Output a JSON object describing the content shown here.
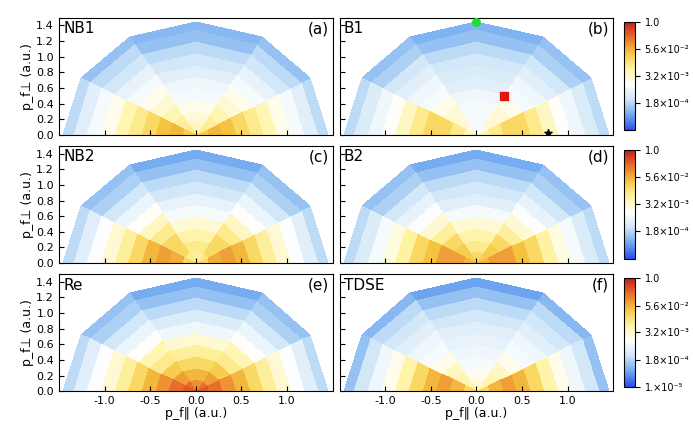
{
  "chart_data": [
    {
      "type": "polar_heatmap",
      "label": "NB1",
      "letter": "(a)",
      "tick_labels": "y",
      "ylabel": "p_f⊥ (a.u.)",
      "xlim": [
        -1.5,
        1.5
      ],
      "ylim": [
        0.0,
        1.5
      ],
      "xticks": [
        -1.0,
        -0.5,
        0.0,
        0.5,
        1.0
      ],
      "yticks": [
        0.0,
        0.2,
        0.4,
        0.6,
        0.8,
        1.0,
        1.2,
        1.4
      ],
      "r_edges": [
        0.0,
        0.15,
        0.3,
        0.45,
        0.6,
        0.75,
        0.9,
        1.05,
        1.2,
        1.35,
        1.45
      ],
      "theta_edges": [
        0,
        30,
        60,
        90,
        120,
        150,
        180
      ],
      "cells": [
        [
          0.03,
          0.01,
          0.005,
          0.005,
          0.01,
          0.03
        ],
        [
          0.05,
          0.008,
          0.003,
          0.003,
          0.008,
          0.05
        ],
        [
          0.04,
          0.005,
          0.002,
          0.002,
          0.005,
          0.04
        ],
        [
          0.02,
          0.003,
          0.001,
          0.001,
          0.003,
          0.02
        ],
        [
          0.01,
          0.002,
          0.0008,
          0.0008,
          0.002,
          0.01
        ],
        [
          0.005,
          0.001,
          0.0005,
          0.0005,
          0.001,
          0.005
        ],
        [
          0.002,
          0.0006,
          0.0003,
          0.0003,
          0.0006,
          0.002
        ],
        [
          0.001,
          0.0003,
          0.0002,
          0.0002,
          0.0003,
          0.001
        ],
        [
          0.0005,
          0.0002,
          0.0001,
          0.0001,
          0.0002,
          0.0005
        ],
        [
          0.0002,
          0.0001,
          8e-05,
          8e-05,
          0.0001,
          0.0002
        ]
      ]
    },
    {
      "type": "polar_heatmap",
      "label": "B1",
      "letter": "(b)",
      "tick_labels": false,
      "xlim": [
        -1.5,
        1.5
      ],
      "ylim": [
        0.0,
        1.5
      ],
      "xticks": [
        -1.0,
        -0.5,
        0.0,
        0.5,
        1.0
      ],
      "yticks": [
        0.0,
        0.2,
        0.4,
        0.6,
        0.8,
        1.0,
        1.2,
        1.4
      ],
      "r_edges": [
        0.0,
        0.15,
        0.3,
        0.45,
        0.6,
        0.75,
        0.9,
        1.05,
        1.2,
        1.35,
        1.45
      ],
      "theta_edges": [
        0,
        30,
        60,
        90,
        120,
        150,
        180
      ],
      "cells": [
        [
          0.005,
          0.002,
          0.001,
          0.001,
          0.002,
          0.005
        ],
        [
          0.01,
          0.003,
          0.001,
          0.001,
          0.003,
          0.01
        ],
        [
          0.02,
          0.003,
          0.001,
          0.001,
          0.003,
          0.02
        ],
        [
          0.02,
          0.002,
          0.0008,
          0.0008,
          0.002,
          0.02
        ],
        [
          0.01,
          0.001,
          0.0005,
          0.0005,
          0.001,
          0.01
        ],
        [
          0.004,
          0.0008,
          0.0004,
          0.0004,
          0.0008,
          0.004
        ],
        [
          0.0015,
          0.0005,
          0.0003,
          0.0003,
          0.0005,
          0.0015
        ],
        [
          0.0008,
          0.0003,
          0.0002,
          0.0002,
          0.0003,
          0.0008
        ],
        [
          0.0004,
          0.00015,
          0.0001,
          0.0001,
          0.00015,
          0.0004
        ],
        [
          0.0002,
          0.0001,
          7e-05,
          7e-05,
          0.0001,
          0.0002
        ]
      ],
      "points": [
        {
          "x": 0.0,
          "y": 1.45,
          "color": "#22dd33",
          "marker": "o"
        },
        {
          "x": 0.3,
          "y": 0.5,
          "color": "#ee1111",
          "marker": "s"
        },
        {
          "x": 0.78,
          "y": 0.02,
          "color": "#000000",
          "marker": "*"
        }
      ],
      "colorbar": {
        "range": [
          1e-05,
          1.0
        ],
        "ticks": [
          {
            "value": 0.00018,
            "label": "1.8×10⁻⁴"
          },
          {
            "value": 0.0032,
            "label": "3.2×10⁻³"
          },
          {
            "value": 0.056,
            "label": "5.6×10⁻²"
          },
          1.0
        ]
      }
    },
    {
      "type": "polar_heatmap",
      "label": "NB2",
      "letter": "(c)",
      "tick_labels": "y",
      "ylabel": "p_f⊥ (a.u.)",
      "xlim": [
        -1.5,
        1.5
      ],
      "ylim": [
        0.0,
        1.5
      ],
      "xticks": [
        -1.0,
        -0.5,
        0.0,
        0.5,
        1.0
      ],
      "yticks": [
        0.0,
        0.2,
        0.4,
        0.6,
        0.8,
        1.0,
        1.2,
        1.4
      ],
      "r_edges": [
        0.0,
        0.15,
        0.3,
        0.45,
        0.6,
        0.75,
        0.9,
        1.05,
        1.2,
        1.35,
        1.45
      ],
      "theta_edges": [
        0,
        30,
        60,
        90,
        120,
        150,
        180
      ],
      "cells": [
        [
          0.02,
          0.01,
          0.008,
          0.008,
          0.01,
          0.02
        ],
        [
          0.06,
          0.02,
          0.01,
          0.01,
          0.02,
          0.06
        ],
        [
          0.08,
          0.02,
          0.006,
          0.006,
          0.02,
          0.08
        ],
        [
          0.05,
          0.01,
          0.003,
          0.003,
          0.01,
          0.05
        ],
        [
          0.02,
          0.004,
          0.001,
          0.001,
          0.004,
          0.02
        ],
        [
          0.008,
          0.0015,
          0.0006,
          0.0006,
          0.0015,
          0.008
        ],
        [
          0.003,
          0.0007,
          0.0003,
          0.0003,
          0.0007,
          0.003
        ],
        [
          0.0012,
          0.0003,
          0.0002,
          0.0002,
          0.0003,
          0.0012
        ],
        [
          0.0005,
          0.00015,
          0.0001,
          0.0001,
          0.00015,
          0.0005
        ],
        [
          0.0002,
          0.0001,
          6e-05,
          6e-05,
          0.0001,
          0.0002
        ]
      ]
    },
    {
      "type": "polar_heatmap",
      "label": "B2",
      "letter": "(d)",
      "tick_labels": false,
      "xlim": [
        -1.5,
        1.5
      ],
      "ylim": [
        0.0,
        1.5
      ],
      "xticks": [
        -1.0,
        -0.5,
        0.0,
        0.5,
        1.0
      ],
      "yticks": [
        0.0,
        0.2,
        0.4,
        0.6,
        0.8,
        1.0,
        1.2,
        1.4
      ],
      "r_edges": [
        0.0,
        0.15,
        0.3,
        0.45,
        0.6,
        0.75,
        0.9,
        1.05,
        1.2,
        1.35,
        1.45
      ],
      "theta_edges": [
        0,
        30,
        60,
        90,
        120,
        150,
        180
      ],
      "cells": [
        [
          0.05,
          0.03,
          0.02,
          0.02,
          0.03,
          0.05
        ],
        [
          0.08,
          0.03,
          0.01,
          0.01,
          0.03,
          0.08
        ],
        [
          0.08,
          0.02,
          0.006,
          0.006,
          0.02,
          0.08
        ],
        [
          0.04,
          0.008,
          0.003,
          0.003,
          0.008,
          0.04
        ],
        [
          0.02,
          0.003,
          0.001,
          0.001,
          0.003,
          0.02
        ],
        [
          0.007,
          0.0012,
          0.0005,
          0.0005,
          0.0012,
          0.007
        ],
        [
          0.0025,
          0.0006,
          0.0003,
          0.0003,
          0.0006,
          0.0025
        ],
        [
          0.001,
          0.0003,
          0.0002,
          0.0002,
          0.0003,
          0.001
        ],
        [
          0.0004,
          0.00015,
          0.0001,
          0.0001,
          0.00015,
          0.0004
        ],
        [
          0.0002,
          0.0001,
          6e-05,
          6e-05,
          0.0001,
          0.0002
        ]
      ],
      "colorbar": {
        "range": [
          1e-05,
          1.0
        ],
        "ticks": [
          {
            "value": 0.00018,
            "label": "1.8×10⁻⁴"
          },
          {
            "value": 0.0032,
            "label": "3.2×10⁻³"
          },
          {
            "value": 0.056,
            "label": "5.6×10⁻²"
          },
          1.0
        ]
      }
    },
    {
      "type": "polar_heatmap",
      "label": "Re",
      "letter": "(e)",
      "tick_labels": true,
      "xlabel": "p_f∥ (a.u.)",
      "ylabel": "p_f⊥ (a.u.)",
      "xlim": [
        -1.5,
        1.5
      ],
      "ylim": [
        0.0,
        1.5
      ],
      "xticks": [
        -1.0,
        -0.5,
        0.0,
        0.5,
        1.0
      ],
      "yticks": [
        0.0,
        0.2,
        0.4,
        0.6,
        0.8,
        1.0,
        1.2,
        1.4
      ],
      "r_edges": [
        0.0,
        0.15,
        0.3,
        0.45,
        0.6,
        0.75,
        0.9,
        1.05,
        1.2,
        1.35,
        1.45
      ],
      "theta_edges": [
        0,
        30,
        60,
        90,
        120,
        150,
        180
      ],
      "cells": [
        [
          0.3,
          0.2,
          0.1,
          0.1,
          0.2,
          0.3
        ],
        [
          0.2,
          0.08,
          0.05,
          0.05,
          0.08,
          0.2
        ],
        [
          0.1,
          0.03,
          0.02,
          0.02,
          0.03,
          0.1
        ],
        [
          0.05,
          0.01,
          0.008,
          0.008,
          0.01,
          0.05
        ],
        [
          0.02,
          0.005,
          0.003,
          0.003,
          0.005,
          0.02
        ],
        [
          0.008,
          0.0015,
          0.0008,
          0.0008,
          0.0015,
          0.008
        ],
        [
          0.003,
          0.0007,
          0.0004,
          0.0004,
          0.0007,
          0.003
        ],
        [
          0.0012,
          0.0003,
          0.0002,
          0.0002,
          0.0003,
          0.0012
        ],
        [
          0.0005,
          0.00015,
          0.0001,
          0.0001,
          0.00015,
          0.0005
        ],
        [
          0.0002,
          0.0001,
          6e-05,
          6e-05,
          0.0001,
          0.0002
        ]
      ]
    },
    {
      "type": "polar_heatmap",
      "label": "TDSE",
      "letter": "(f)",
      "tick_labels": "x",
      "xlabel": "p_f∥ (a.u.)",
      "xlim": [
        -1.5,
        1.5
      ],
      "ylim": [
        0.0,
        1.5
      ],
      "xticks": [
        -1.0,
        -0.5,
        0.0,
        0.5,
        1.0
      ],
      "yticks": [
        0.0,
        0.2,
        0.4,
        0.6,
        0.8,
        1.0,
        1.2,
        1.4
      ],
      "r_edges": [
        0.0,
        0.15,
        0.3,
        0.45,
        0.6,
        0.75,
        0.9,
        1.05,
        1.2,
        1.35,
        1.45
      ],
      "theta_edges": [
        0,
        30,
        60,
        90,
        120,
        150,
        180
      ],
      "cells": [
        [
          0.02,
          0.005,
          0.003,
          0.003,
          0.005,
          0.02
        ],
        [
          0.05,
          0.005,
          0.002,
          0.002,
          0.005,
          0.05
        ],
        [
          0.08,
          0.004,
          0.001,
          0.001,
          0.004,
          0.08
        ],
        [
          0.05,
          0.002,
          0.0008,
          0.0008,
          0.002,
          0.05
        ],
        [
          0.02,
          0.001,
          0.0006,
          0.0006,
          0.001,
          0.02
        ],
        [
          0.006,
          0.0008,
          0.0005,
          0.0005,
          0.0008,
          0.006
        ],
        [
          0.002,
          0.0005,
          0.0003,
          0.0003,
          0.0005,
          0.002
        ],
        [
          0.0008,
          0.0003,
          0.0002,
          0.0002,
          0.0003,
          0.0008
        ],
        [
          0.0003,
          0.0002,
          0.0001,
          0.0001,
          0.0002,
          0.0003
        ],
        [
          0.0001,
          8e-05,
          5e-05,
          5e-05,
          8e-05,
          0.0001
        ]
      ],
      "colorbar": {
        "range": [
          1e-05,
          1.0
        ],
        "ticks": [
          {
            "value": 1e-05,
            "label": "1.×10⁻⁵"
          },
          {
            "value": 0.00018,
            "label": "1.8×10⁻⁴"
          },
          {
            "value": 0.0032,
            "label": "3.2×10⁻³"
          },
          {
            "value": 0.056,
            "label": "5.6×10⁻²"
          },
          1.0
        ]
      }
    }
  ]
}
